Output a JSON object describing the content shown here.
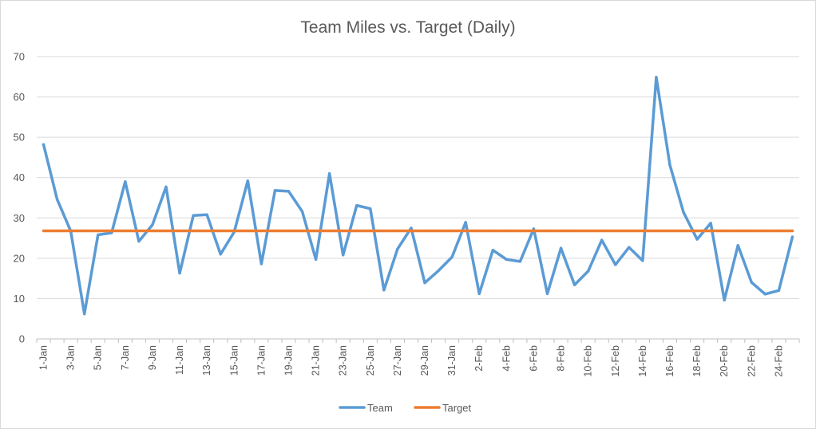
{
  "chart_data": {
    "type": "line",
    "title": "Team Miles vs. Target (Daily)",
    "xlabel": "",
    "ylabel": "",
    "ylim": [
      0,
      70
    ],
    "y_ticks": [
      0,
      10,
      20,
      30,
      40,
      50,
      60,
      70
    ],
    "grid": true,
    "legend_position": "bottom",
    "categories": [
      "1-Jan",
      "2-Jan",
      "3-Jan",
      "4-Jan",
      "5-Jan",
      "6-Jan",
      "7-Jan",
      "8-Jan",
      "9-Jan",
      "10-Jan",
      "11-Jan",
      "12-Jan",
      "13-Jan",
      "14-Jan",
      "15-Jan",
      "16-Jan",
      "17-Jan",
      "18-Jan",
      "19-Jan",
      "20-Jan",
      "21-Jan",
      "22-Jan",
      "23-Jan",
      "24-Jan",
      "25-Jan",
      "26-Jan",
      "27-Jan",
      "28-Jan",
      "29-Jan",
      "30-Jan",
      "31-Jan",
      "1-Feb",
      "2-Feb",
      "3-Feb",
      "4-Feb",
      "5-Feb",
      "6-Feb",
      "7-Feb",
      "8-Feb",
      "9-Feb",
      "10-Feb",
      "11-Feb",
      "12-Feb",
      "13-Feb",
      "14-Feb",
      "15-Feb",
      "16-Feb",
      "17-Feb",
      "18-Feb",
      "19-Feb",
      "20-Feb",
      "21-Feb",
      "22-Feb",
      "23-Feb",
      "24-Feb",
      "25-Feb"
    ],
    "x_tick_labels": [
      "1-Jan",
      "3-Jan",
      "5-Jan",
      "7-Jan",
      "9-Jan",
      "11-Jan",
      "13-Jan",
      "15-Jan",
      "17-Jan",
      "19-Jan",
      "21-Jan",
      "23-Jan",
      "25-Jan",
      "27-Jan",
      "29-Jan",
      "31-Jan",
      "2-Feb",
      "4-Feb",
      "6-Feb",
      "8-Feb",
      "10-Feb",
      "12-Feb",
      "14-Feb",
      "16-Feb",
      "18-Feb",
      "20-Feb",
      "22-Feb",
      "24-Feb"
    ],
    "series": [
      {
        "name": "Team",
        "color": "#5b9bd5",
        "values": [
          48.2,
          34.6,
          26.7,
          6.2,
          25.8,
          26.3,
          39.0,
          24.2,
          28.3,
          37.7,
          16.3,
          30.6,
          30.8,
          21.0,
          26.5,
          39.2,
          18.6,
          36.8,
          36.6,
          31.6,
          19.7,
          41.0,
          20.8,
          33.1,
          32.3,
          12.1,
          22.3,
          27.5,
          13.9,
          16.9,
          20.3,
          28.9,
          11.2,
          22.0,
          19.7,
          19.2,
          27.3,
          11.2,
          22.5,
          13.4,
          16.8,
          24.5,
          18.4,
          22.7,
          19.4,
          64.9,
          43.1,
          31.4,
          24.7,
          28.7,
          9.6,
          23.2,
          14.0,
          11.1,
          12.0,
          25.3
        ]
      },
      {
        "name": "Target",
        "color": "#ed7d31",
        "values": [
          26.8,
          26.8,
          26.8,
          26.8,
          26.8,
          26.8,
          26.8,
          26.8,
          26.8,
          26.8,
          26.8,
          26.8,
          26.8,
          26.8,
          26.8,
          26.8,
          26.8,
          26.8,
          26.8,
          26.8,
          26.8,
          26.8,
          26.8,
          26.8,
          26.8,
          26.8,
          26.8,
          26.8,
          26.8,
          26.8,
          26.8,
          26.8,
          26.8,
          26.8,
          26.8,
          26.8,
          26.8,
          26.8,
          26.8,
          26.8,
          26.8,
          26.8,
          26.8,
          26.8,
          26.8,
          26.8,
          26.8,
          26.8,
          26.8,
          26.8,
          26.8,
          26.8,
          26.8,
          26.8,
          26.8,
          26.8
        ]
      }
    ]
  }
}
